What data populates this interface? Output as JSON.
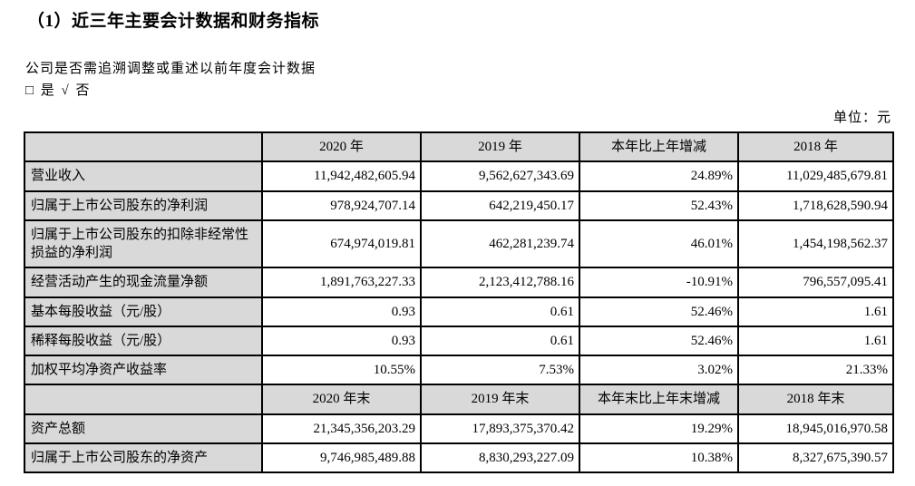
{
  "page": {
    "title": "（1）近三年主要会计数据和财务指标",
    "question": "公司是否需追溯调整或重述以前年度会计数据",
    "checkbox_line": "□ 是 √ 否",
    "unit_label": "单位：元"
  },
  "colors": {
    "header_bg": "#d9d9d9",
    "border": "#000000",
    "text": "#000000"
  },
  "table": {
    "sections": [
      {
        "header": [
          "",
          "2020 年",
          "2019 年",
          "本年比上年增减",
          "2018 年"
        ],
        "rows": [
          {
            "label": "营业收入",
            "values": [
              "11,942,482,605.94",
              "9,562,627,343.69",
              "24.89%",
              "11,029,485,679.81"
            ]
          },
          {
            "label": "归属于上市公司股东的净利润",
            "values": [
              "978,924,707.14",
              "642,219,450.17",
              "52.43%",
              "1,718,628,590.94"
            ]
          },
          {
            "label": "归属于上市公司股东的扣除非经常性损益的净利润",
            "values": [
              "674,974,019.81",
              "462,281,239.74",
              "46.01%",
              "1,454,198,562.37"
            ]
          },
          {
            "label": "经营活动产生的现金流量净额",
            "values": [
              "1,891,763,227.33",
              "2,123,412,788.16",
              "-10.91%",
              "796,557,095.41"
            ]
          },
          {
            "label": "基本每股收益（元/股）",
            "values": [
              "0.93",
              "0.61",
              "52.46%",
              "1.61"
            ]
          },
          {
            "label": "稀释每股收益（元/股）",
            "values": [
              "0.93",
              "0.61",
              "52.46%",
              "1.61"
            ]
          },
          {
            "label": "加权平均净资产收益率",
            "values": [
              "10.55%",
              "7.53%",
              "3.02%",
              "21.33%"
            ]
          }
        ]
      },
      {
        "header": [
          "",
          "2020 年末",
          "2019 年末",
          "本年末比上年末增减",
          "2018 年末"
        ],
        "rows": [
          {
            "label": "资产总额",
            "values": [
              "21,345,356,203.29",
              "17,893,375,370.42",
              "19.29%",
              "18,945,016,970.58"
            ]
          },
          {
            "label": "归属于上市公司股东的净资产",
            "values": [
              "9,746,985,489.88",
              "8,830,293,227.09",
              "10.38%",
              "8,327,675,390.57"
            ]
          }
        ]
      }
    ]
  }
}
